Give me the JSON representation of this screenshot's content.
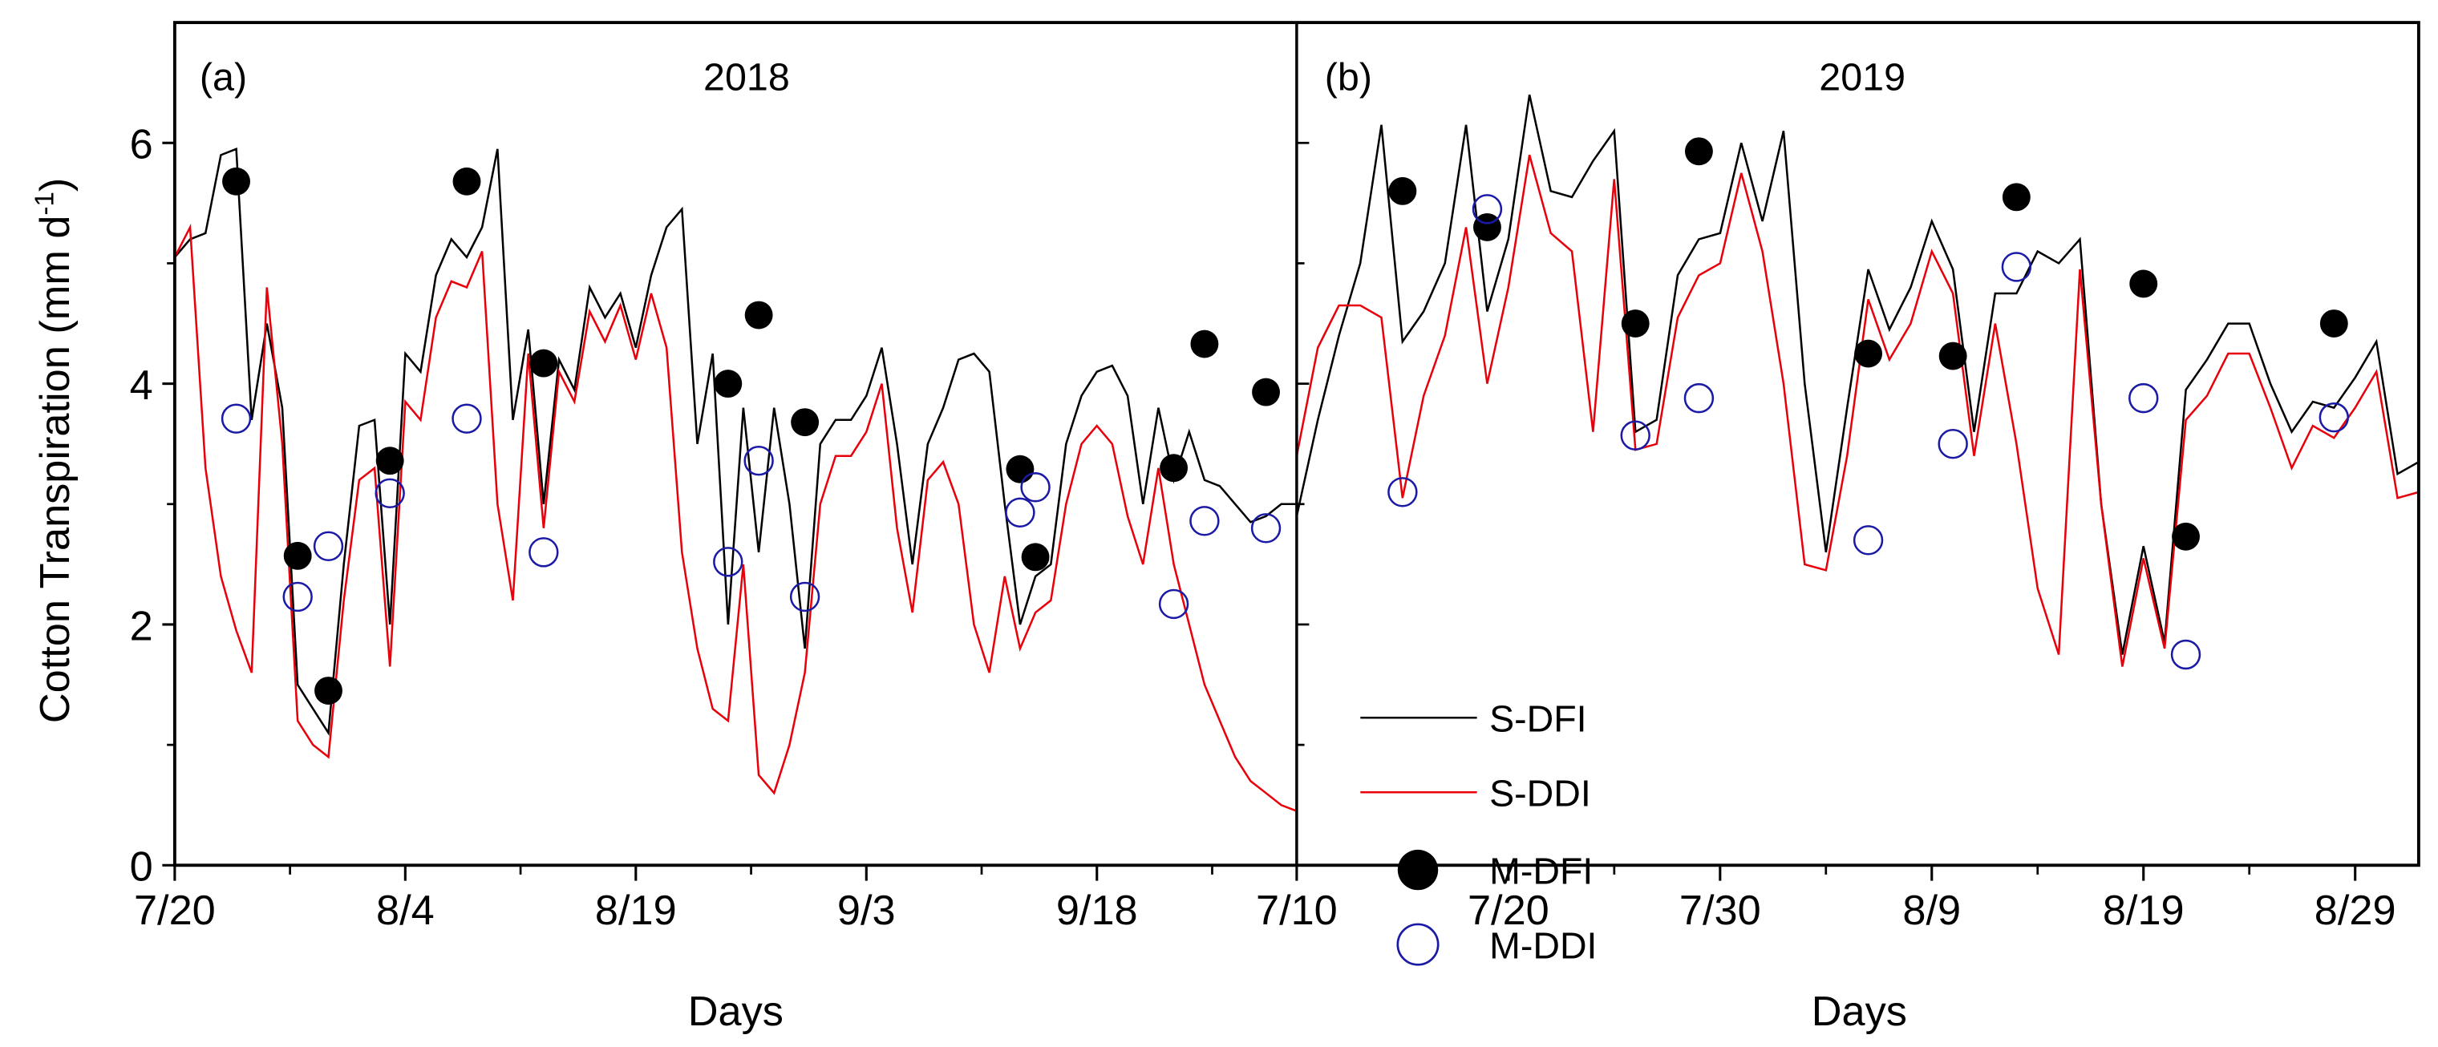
{
  "chart_data": {
    "type": "line",
    "ylabel": "Cotton Transpiration (mm d",
    "ylabel_sup": "-1",
    "ylabel_close": ")",
    "ylim": [
      0,
      7
    ],
    "yticks": [
      0,
      2,
      4,
      6
    ],
    "yticks_minor": [
      1,
      3,
      5
    ],
    "legend": {
      "placement": "inside panel (b), lower-left",
      "entries": [
        {
          "label": "S-DFI",
          "kind": "line",
          "color": "#000000"
        },
        {
          "label": "S-DDI",
          "kind": "line",
          "color": "#e8000b"
        },
        {
          "label": "M-DFI",
          "kind": "filled-circle",
          "color": "#000000"
        },
        {
          "label": "M-DDI",
          "kind": "open-circle",
          "color": "#1a1aa6"
        }
      ]
    },
    "panels": [
      {
        "tag": "(a)",
        "title": "2018",
        "xlabel": "Days",
        "x_unit": "days since 7/20",
        "xlim": [
          0,
          73
        ],
        "xticks": [
          {
            "x": 0,
            "label": "7/20"
          },
          {
            "x": 15,
            "label": "8/4"
          },
          {
            "x": 30,
            "label": "8/19"
          },
          {
            "x": 45,
            "label": "9/3"
          },
          {
            "x": 60,
            "label": "9/18"
          }
        ],
        "xticks_minor": [
          7.5,
          22.5,
          37.5,
          52.5,
          67.5
        ],
        "series": [
          {
            "name": "S-DFI",
            "x": [
              0,
              1,
              2,
              3,
              4,
              5,
              6,
              7,
              8,
              9,
              10,
              11,
              12,
              13,
              14,
              15,
              16,
              17,
              18,
              19,
              20,
              21,
              22,
              23,
              24,
              25,
              26,
              27,
              28,
              29,
              30,
              31,
              32,
              33,
              34,
              35,
              36,
              37,
              38,
              39,
              40,
              41,
              42,
              43,
              44,
              45,
              46,
              47,
              48,
              49,
              50,
              51,
              52,
              53,
              54,
              55,
              56,
              57,
              58,
              59,
              60,
              61,
              62,
              63,
              64,
              65,
              66,
              67,
              68,
              69,
              70,
              71,
              72,
              73
            ],
            "y": [
              5.05,
              5.2,
              5.25,
              5.9,
              5.95,
              3.7,
              4.5,
              3.8,
              1.5,
              1.3,
              1.1,
              2.5,
              3.65,
              3.7,
              2.0,
              4.25,
              4.1,
              4.9,
              5.2,
              5.05,
              5.3,
              5.95,
              3.7,
              4.45,
              3.0,
              4.2,
              3.95,
              4.8,
              4.55,
              4.75,
              4.3,
              4.9,
              5.3,
              5.45,
              3.5,
              4.25,
              2.0,
              3.8,
              2.6,
              3.8,
              3.0,
              1.8,
              3.5,
              3.7,
              3.7,
              3.9,
              4.3,
              3.5,
              2.5,
              3.5,
              3.8,
              4.2,
              4.25,
              4.1,
              3.0,
              2.0,
              2.4,
              2.5,
              3.5,
              3.9,
              4.1,
              4.15,
              3.9,
              3.0,
              3.8,
              3.2,
              3.6,
              3.2,
              3.15,
              3.0,
              2.85,
              2.9,
              3.0,
              3.0
            ]
          },
          {
            "name": "S-DDI",
            "x": [
              0,
              1,
              2,
              3,
              4,
              5,
              6,
              7,
              8,
              9,
              10,
              11,
              12,
              13,
              14,
              15,
              16,
              17,
              18,
              19,
              20,
              21,
              22,
              23,
              24,
              25,
              26,
              27,
              28,
              29,
              30,
              31,
              32,
              33,
              34,
              35,
              36,
              37,
              38,
              39,
              40,
              41,
              42,
              43,
              44,
              45,
              46,
              47,
              48,
              49,
              50,
              51,
              52,
              53,
              54,
              55,
              56,
              57,
              58,
              59,
              60,
              61,
              62,
              63,
              64,
              65,
              66,
              67,
              68,
              69,
              70,
              71,
              72,
              73
            ],
            "y": [
              5.05,
              5.3,
              3.3,
              2.4,
              1.95,
              1.6,
              4.8,
              3.5,
              1.2,
              1.0,
              0.9,
              2.2,
              3.2,
              3.3,
              1.65,
              3.85,
              3.7,
              4.55,
              4.85,
              4.8,
              5.1,
              3.0,
              2.2,
              4.25,
              2.8,
              4.1,
              3.85,
              4.6,
              4.35,
              4.65,
              4.2,
              4.75,
              4.3,
              2.6,
              1.8,
              1.3,
              1.2,
              2.5,
              0.75,
              0.6,
              1.0,
              1.6,
              3.0,
              3.4,
              3.4,
              3.6,
              4.0,
              2.8,
              2.1,
              3.2,
              3.35,
              3.0,
              2.0,
              1.6,
              2.4,
              1.8,
              2.1,
              2.2,
              3.0,
              3.5,
              3.65,
              3.5,
              2.9,
              2.5,
              3.3,
              2.5,
              2.0,
              1.5,
              1.2,
              0.9,
              0.7,
              0.6,
              0.5,
              0.45
            ]
          },
          {
            "name": "M-DFI",
            "x": [
              4,
              8,
              10,
              14,
              19,
              24,
              36,
              38,
              41,
              55,
              56,
              65,
              67,
              71
            ],
            "y": [
              5.68,
              2.57,
              1.45,
              3.36,
              5.68,
              4.17,
              4.0,
              4.57,
              3.68,
              3.29,
              2.56,
              3.3,
              4.33,
              3.93
            ]
          },
          {
            "name": "M-DDI",
            "x": [
              4,
              8,
              10,
              14,
              19,
              24,
              36,
              38,
              41,
              55,
              56,
              65,
              67,
              71
            ],
            "y": [
              3.71,
              2.23,
              2.65,
              3.09,
              3.71,
              2.6,
              2.52,
              3.36,
              2.23,
              2.93,
              3.14,
              2.17,
              2.86,
              2.8
            ]
          }
        ]
      },
      {
        "tag": "(b)",
        "title": "2019",
        "xlabel": "Days",
        "x_unit": "days since 7/10",
        "xlim": [
          0,
          53
        ],
        "xticks": [
          {
            "x": 0,
            "label": "7/10"
          },
          {
            "x": 10,
            "label": "7/20"
          },
          {
            "x": 20,
            "label": "7/30"
          },
          {
            "x": 30,
            "label": "8/9"
          },
          {
            "x": 40,
            "label": "8/19"
          },
          {
            "x": 50,
            "label": "8/29"
          }
        ],
        "xticks_minor": [
          5,
          15,
          25,
          35,
          45
        ],
        "series": [
          {
            "name": "S-DFI",
            "x": [
              0,
              1,
              2,
              3,
              4,
              5,
              6,
              7,
              8,
              9,
              10,
              11,
              12,
              13,
              14,
              15,
              16,
              17,
              18,
              19,
              20,
              21,
              22,
              23,
              24,
              25,
              26,
              27,
              28,
              29,
              30,
              31,
              32,
              33,
              34,
              35,
              36,
              37,
              38,
              39,
              40,
              41,
              42,
              43,
              44,
              45,
              46,
              47,
              48,
              49,
              50,
              51,
              52,
              53
            ],
            "y": [
              2.9,
              3.7,
              4.4,
              5.0,
              6.15,
              4.35,
              4.6,
              5.0,
              6.15,
              4.6,
              5.2,
              6.4,
              5.6,
              5.55,
              5.85,
              6.1,
              3.6,
              3.7,
              4.9,
              5.2,
              5.25,
              6.0,
              5.35,
              6.1,
              4.0,
              2.6,
              3.8,
              4.95,
              4.45,
              4.8,
              5.35,
              4.95,
              3.6,
              4.75,
              4.75,
              5.1,
              5.0,
              5.2,
              3.0,
              1.75,
              2.65,
              1.85,
              3.95,
              4.2,
              4.5,
              4.5,
              4.0,
              3.6,
              3.85,
              3.8,
              4.05,
              4.35,
              3.25,
              3.35
            ]
          },
          {
            "name": "S-DDI",
            "x": [
              0,
              1,
              2,
              3,
              4,
              5,
              6,
              7,
              8,
              9,
              10,
              11,
              12,
              13,
              14,
              15,
              16,
              17,
              18,
              19,
              20,
              21,
              22,
              23,
              24,
              25,
              26,
              27,
              28,
              29,
              30,
              31,
              32,
              33,
              34,
              35,
              36,
              37,
              38,
              39,
              40,
              41,
              42,
              43,
              44,
              45,
              46,
              47,
              48,
              49,
              50,
              51,
              52,
              53
            ],
            "y": [
              3.4,
              4.3,
              4.65,
              4.65,
              4.55,
              3.05,
              3.9,
              4.4,
              5.3,
              4.0,
              4.8,
              5.9,
              5.25,
              5.1,
              3.6,
              5.7,
              3.45,
              3.5,
              4.55,
              4.9,
              5.0,
              5.75,
              5.1,
              4.0,
              2.5,
              2.45,
              3.4,
              4.7,
              4.2,
              4.5,
              5.1,
              4.75,
              3.4,
              4.5,
              3.5,
              2.3,
              1.75,
              4.95,
              3.0,
              1.65,
              2.55,
              1.8,
              3.7,
              3.9,
              4.25,
              4.25,
              3.8,
              3.3,
              3.65,
              3.55,
              3.8,
              4.1,
              3.05,
              3.1
            ]
          },
          {
            "name": "M-DFI",
            "x": [
              5,
              9,
              16,
              19,
              27,
              31,
              34,
              40,
              42,
              49
            ],
            "y": [
              5.6,
              5.3,
              4.5,
              5.93,
              4.25,
              4.23,
              5.55,
              4.83,
              2.73,
              4.5
            ]
          },
          {
            "name": "M-DDI",
            "x": [
              5,
              9,
              16,
              19,
              27,
              31,
              34,
              40,
              42,
              49
            ],
            "y": [
              3.1,
              5.45,
              3.57,
              3.88,
              2.7,
              3.5,
              4.97,
              3.88,
              1.75,
              3.72
            ]
          }
        ]
      }
    ]
  }
}
